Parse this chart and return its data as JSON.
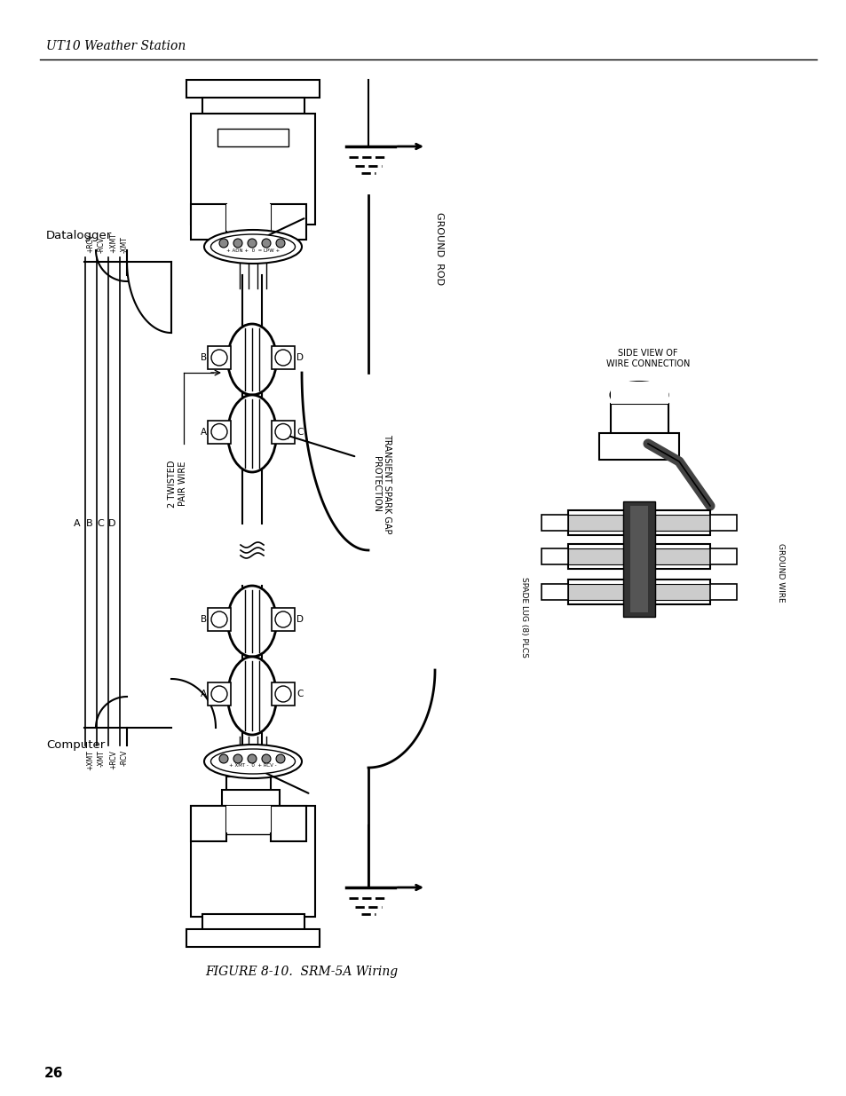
{
  "title": "UT10 Weather Station",
  "page_number": "26",
  "figure_caption": "FIGURE 8-10.  SRM-5A Wiring",
  "background_color": "#ffffff",
  "line_color": "#000000",
  "fig_width": 9.54,
  "fig_height": 12.35,
  "header_text": "UT10 Weather Station",
  "labels": {
    "datalogger": "Datalogger",
    "computer": "Computer",
    "ground_rod": "GROUND ROD",
    "two_twisted": "2 TWISTED\nPAIR WIRE",
    "transient": "TRANSIENT SPARK GAP\nPROTECTION",
    "side_view": "SIDE VIEW OF\nWIRE CONNECTION",
    "spade_lug": "SPADE LUG (8) PLCS",
    "ground_wire": "GROUND WIRE"
  }
}
